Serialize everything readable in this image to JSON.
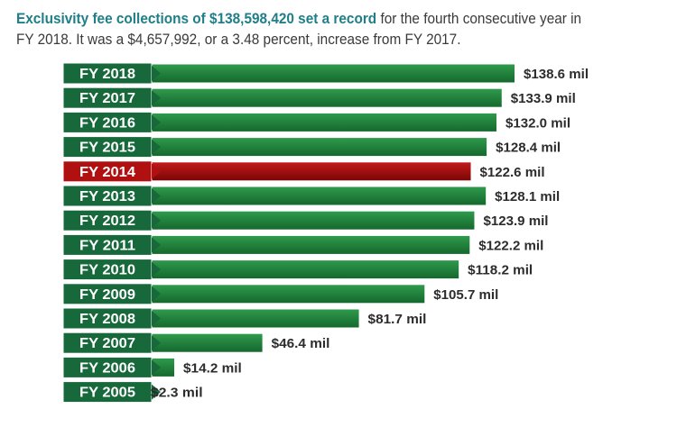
{
  "header": {
    "lead": "Exclusivity fee collections of $138,598,420 set a record",
    "rest": " for the fourth consecutive year in",
    "line2": "FY 2018. It was a $4,657,992, or a 3.48 percent, increase from FY 2017."
  },
  "colors": {
    "bar": "#1a7a36",
    "bar_light": "#2f9a4c",
    "highlight": "#b01010",
    "highlight_dark": "#7a0606",
    "label_box": "#17683a",
    "label_text": "#ffffff",
    "value_text": "#2c2c2c"
  },
  "chart_data": {
    "type": "bar",
    "orientation": "horizontal",
    "categories": [
      "FY 2018",
      "FY 2017",
      "FY 2016",
      "FY 2015",
      "FY 2014",
      "FY 2013",
      "FY 2012",
      "FY 2011",
      "FY 2010",
      "FY 2009",
      "FY 2008",
      "FY 2007",
      "FY 2006",
      "FY 2005"
    ],
    "values": [
      138.6,
      133.9,
      132.0,
      128.4,
      122.6,
      128.1,
      123.9,
      122.2,
      118.2,
      105.7,
      81.7,
      46.4,
      14.2,
      2.3
    ],
    "data_labels": [
      "$138.6 mil",
      "$133.9 mil",
      "$132.0 mil",
      "$128.4 mil",
      "$122.6 mil",
      "$128.1 mil",
      "$123.9 mil",
      "$122.2 mil",
      "$118.2 mil",
      "$105.7 mil",
      "$81.7 mil",
      "$46.4 mil",
      "$14.2 mil",
      "$2.3 mil"
    ],
    "highlight": "FY 2014",
    "title": "",
    "xlabel": "",
    "ylabel": "",
    "xlim": [
      0,
      138.6
    ],
    "grid": false,
    "legend": "none"
  }
}
